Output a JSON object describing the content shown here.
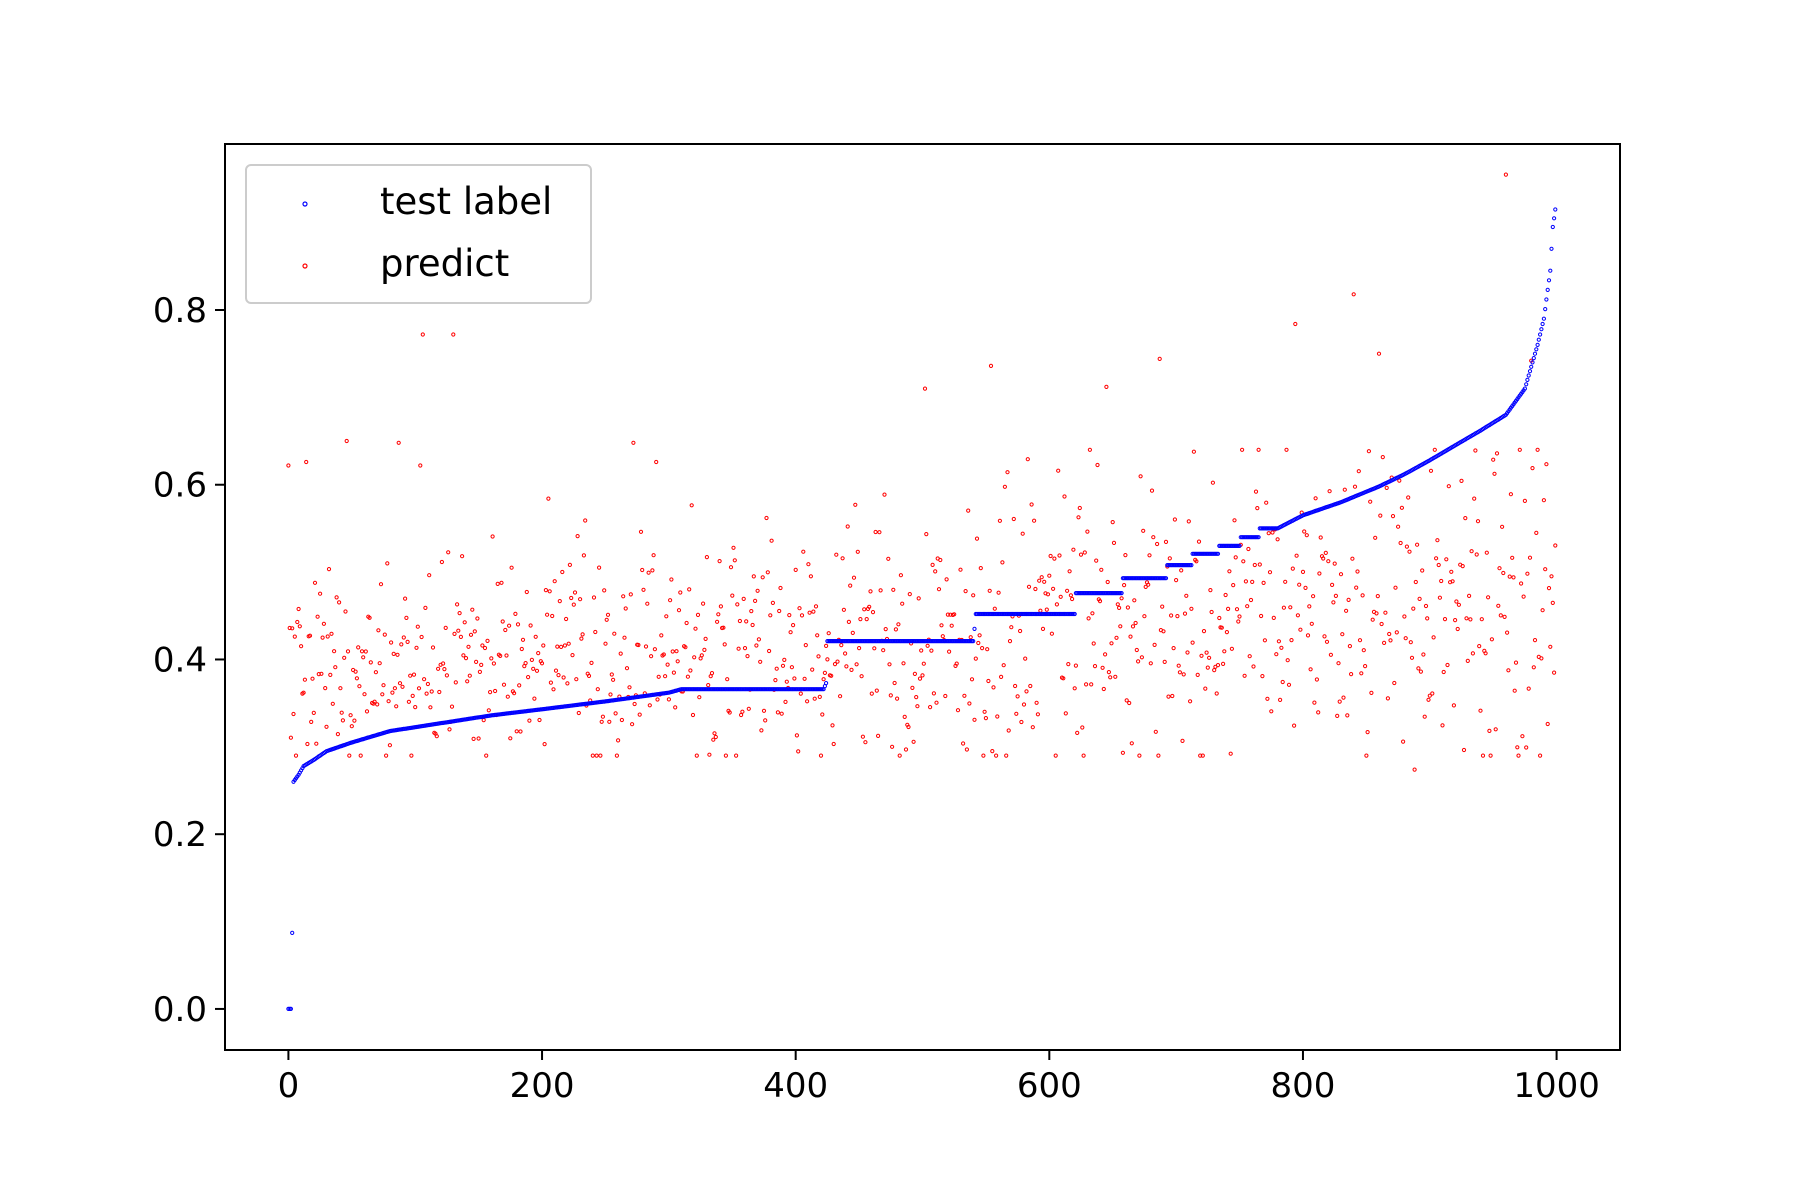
{
  "chart_data": {
    "type": "scatter",
    "title": "",
    "xlabel": "",
    "ylabel": "",
    "xlim": [
      -50,
      1050
    ],
    "ylim": [
      -0.047,
      0.99
    ],
    "xticks": [
      0,
      200,
      400,
      600,
      800,
      1000
    ],
    "yticks": [
      0.0,
      0.2,
      0.4,
      0.6,
      0.8
    ],
    "xtick_labels": [
      "0",
      "200",
      "400",
      "600",
      "800",
      "1000"
    ],
    "ytick_labels": [
      "0.0",
      "0.2",
      "0.4",
      "0.6",
      "0.8"
    ],
    "grid": false,
    "legend_position": "top-left",
    "series": [
      {
        "name": "test label",
        "color": "#0000ff",
        "n": 1000,
        "label_points": [
          [
            0,
            0.0
          ],
          [
            1,
            0.0
          ],
          [
            2,
            0.0
          ],
          [
            3,
            0.087
          ],
          [
            4,
            0.26
          ],
          [
            8,
            0.268
          ],
          [
            12,
            0.278
          ],
          [
            20,
            0.285
          ],
          [
            30,
            0.295
          ],
          [
            50,
            0.305
          ],
          [
            80,
            0.318
          ],
          [
            120,
            0.327
          ],
          [
            160,
            0.336
          ],
          [
            200,
            0.343
          ],
          [
            250,
            0.352
          ],
          [
            300,
            0.362
          ],
          [
            310,
            0.366
          ],
          [
            422,
            0.366
          ],
          [
            424,
            0.373
          ],
          [
            425,
            0.421
          ],
          [
            540,
            0.421
          ],
          [
            541,
            0.435
          ],
          [
            542,
            0.452
          ],
          [
            620,
            0.452
          ],
          [
            621,
            0.476
          ],
          [
            657,
            0.476
          ],
          [
            658,
            0.493
          ],
          [
            692,
            0.493
          ],
          [
            693,
            0.508
          ],
          [
            712,
            0.508
          ],
          [
            713,
            0.521
          ],
          [
            733,
            0.521
          ],
          [
            734,
            0.53
          ],
          [
            750,
            0.53
          ],
          [
            751,
            0.54
          ],
          [
            765,
            0.54
          ],
          [
            766,
            0.55
          ],
          [
            780,
            0.55
          ],
          [
            800,
            0.565
          ],
          [
            830,
            0.58
          ],
          [
            860,
            0.598
          ],
          [
            880,
            0.612
          ],
          [
            900,
            0.628
          ],
          [
            920,
            0.645
          ],
          [
            940,
            0.662
          ],
          [
            960,
            0.68
          ],
          [
            975,
            0.71
          ],
          [
            985,
            0.76
          ],
          [
            990,
            0.79
          ],
          [
            995,
            0.845
          ],
          [
            997,
            0.895
          ],
          [
            999,
            0.915
          ]
        ]
      },
      {
        "name": "predict",
        "color": "#ff0000",
        "n": 1000,
        "highlights": [
          [
            0,
            0.622
          ],
          [
            14,
            0.626
          ],
          [
            46,
            0.65
          ],
          [
            87,
            0.648
          ],
          [
            104,
            0.622
          ],
          [
            106,
            0.772
          ],
          [
            130,
            0.772
          ],
          [
            272,
            0.648
          ],
          [
            290,
            0.626
          ],
          [
            502,
            0.71
          ],
          [
            554,
            0.736
          ],
          [
            645,
            0.712
          ],
          [
            687,
            0.744
          ],
          [
            794,
            0.784
          ],
          [
            840,
            0.818
          ],
          [
            860,
            0.75
          ],
          [
            888,
            0.274
          ],
          [
            960,
            0.955
          ],
          [
            970,
            0.29
          ],
          [
            980,
            0.742
          ]
        ]
      }
    ]
  }
}
